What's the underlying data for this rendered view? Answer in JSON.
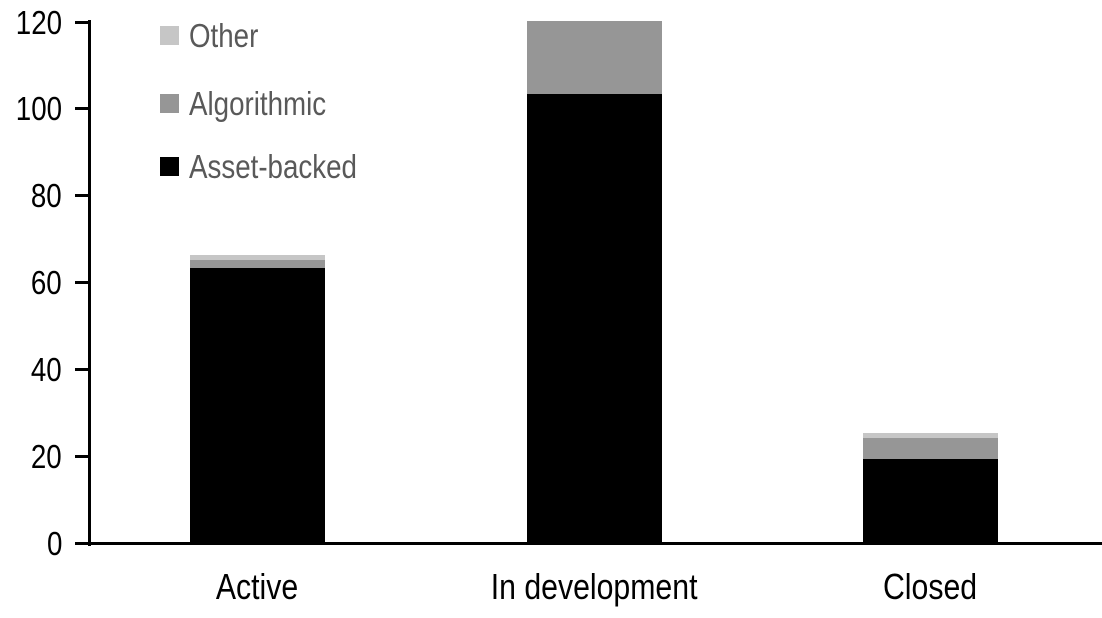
{
  "chart_data": {
    "type": "bar",
    "stacked": true,
    "title": "",
    "xlabel": "",
    "ylabel": "",
    "categories": [
      "Active",
      "In development",
      "Closed"
    ],
    "series": [
      {
        "name": "Asset-backed",
        "color": "#000000",
        "values": [
          63,
          103,
          19
        ]
      },
      {
        "name": "Algorithmic",
        "color": "#969696",
        "values": [
          2,
          17,
          5
        ]
      },
      {
        "name": "Other",
        "color": "#c6c6c6",
        "values": [
          1,
          0,
          1
        ]
      }
    ],
    "totals": [
      66,
      120,
      25
    ],
    "ylim": [
      0,
      120
    ],
    "ytick_step": 20,
    "yticks": [
      0,
      20,
      40,
      60,
      80,
      100,
      120
    ],
    "grid": false,
    "legend_position": "top-left",
    "legend_order_top_to_bottom": [
      "Other",
      "Algorithmic",
      "Asset-backed"
    ],
    "colors": {
      "axis": "#000000",
      "tick_label_text": "#000000",
      "category_label_text": "#000000",
      "legend_text": "#595959",
      "background": "#ffffff"
    }
  }
}
